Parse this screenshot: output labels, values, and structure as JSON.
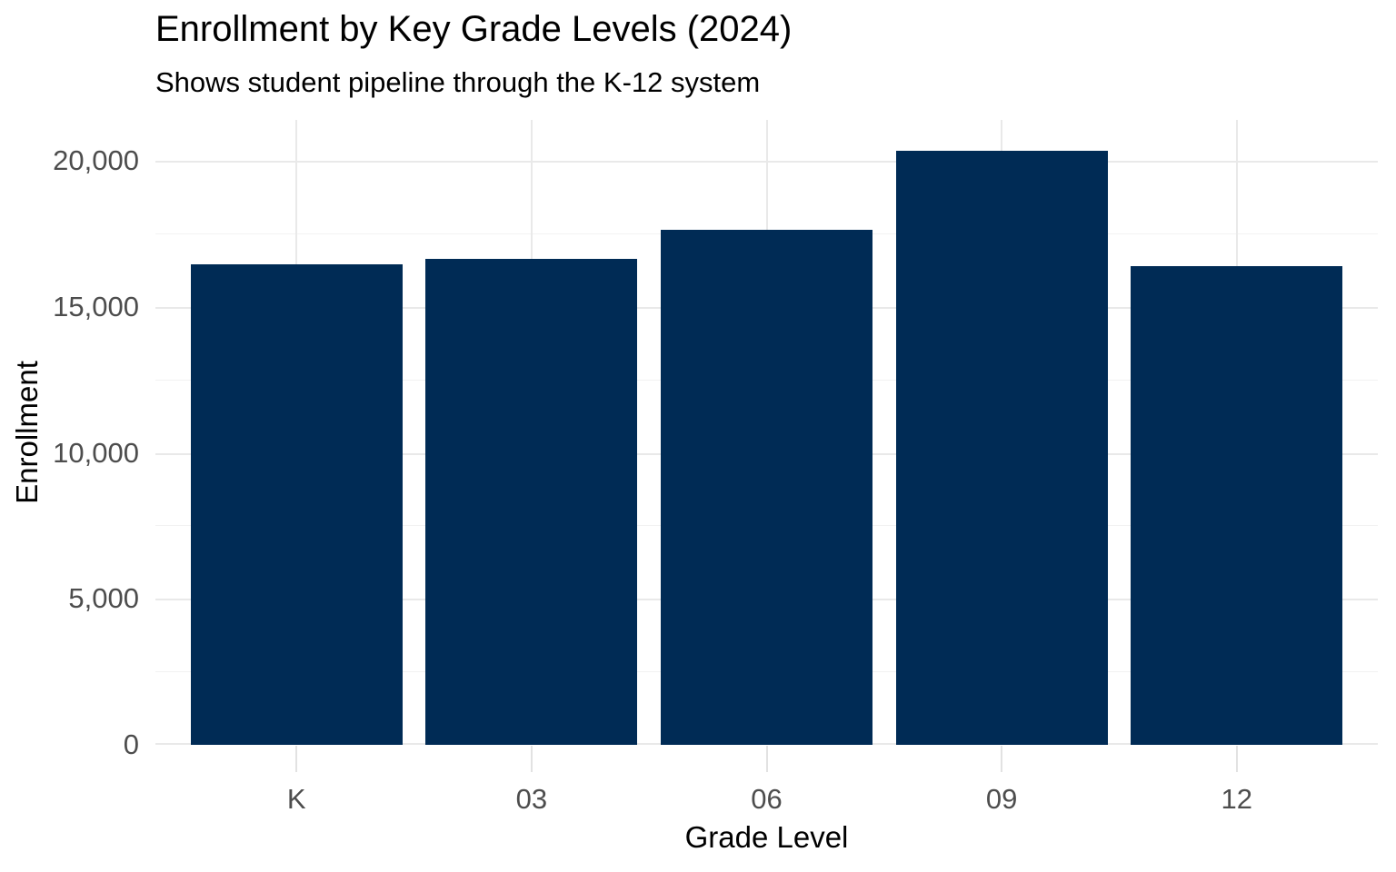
{
  "chart_data": {
    "type": "bar",
    "title": "Enrollment by Key Grade Levels (2024)",
    "subtitle": "Shows student pipeline through the K-12 system",
    "xlabel": "Grade Level",
    "ylabel": "Enrollment",
    "categories": [
      "K",
      "03",
      "06",
      "09",
      "12"
    ],
    "values": [
      16450,
      16650,
      17650,
      20340,
      16400
    ],
    "series_name": "Enrollment",
    "ylim": [
      0,
      21400
    ],
    "yticks": [
      0,
      5000,
      10000,
      15000,
      20000
    ],
    "ytick_labels": [
      "0",
      "5,000",
      "10,000",
      "15,000",
      "20,000"
    ],
    "yminor_ticks": [
      2500,
      7500,
      12500,
      17500
    ],
    "grid": "major and minor horizontal, major vertical at category centers",
    "legend_position": "none",
    "bar_relative_width": 0.9,
    "colors": {
      "bar_fill": "#002b55",
      "grid_major": "#e9e9e9",
      "grid_minor": "#f2f2f2",
      "axis_tick": "#e2e2e2",
      "tick_label_text": "#4d4d4d",
      "title_text": "#000000",
      "background": "#ffffff"
    }
  }
}
